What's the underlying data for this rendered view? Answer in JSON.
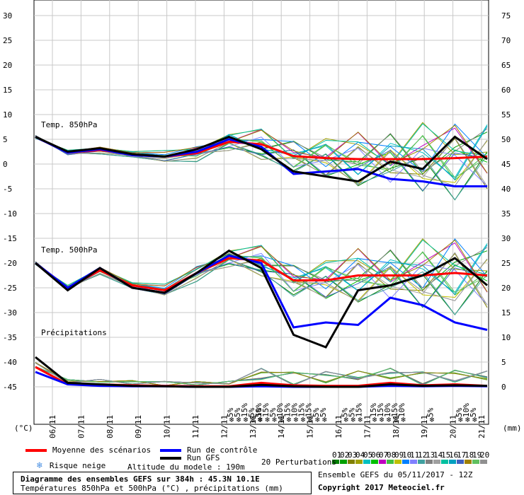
{
  "chart_data": {
    "type": "line",
    "title": "Diagramme des ensembles GEFS sur 384h : 45.3N 10.1E",
    "subtitle": "Températures 850hPa et 500hPa (°C) , précipitations (mm)",
    "left_axis": {
      "unit": "(°C)",
      "ticks": [
        30,
        25,
        20,
        15,
        10,
        5,
        0,
        -5,
        -10,
        -15,
        -20,
        -25,
        -30,
        -35,
        -40,
        -45
      ],
      "range": [
        -45,
        30
      ]
    },
    "right_axis": {
      "unit": "(mm)",
      "ticks": [
        75,
        70,
        65,
        60,
        55,
        50,
        45,
        40,
        35,
        30,
        25,
        20,
        15,
        10,
        5,
        0
      ]
    },
    "x_dates": [
      "06/11",
      "07/11",
      "08/11",
      "09/11",
      "10/11",
      "11/11",
      "12/11",
      "13/11",
      "14/11",
      "15/11",
      "16/11",
      "17/11",
      "18/11",
      "19/11",
      "20/11",
      "21/11"
    ],
    "panels": {
      "t850": "Temp. 850hPa",
      "t500": "Temp. 500hPa",
      "precip": "Précipitations"
    },
    "snow_risk": [
      {
        "date": "13/11",
        "pct": [
          "5%",
          "5%",
          "15%",
          "5%",
          "10%"
        ]
      },
      {
        "date": "14/11",
        "pct": [
          "5%",
          "15%",
          "5%",
          "10%"
        ]
      },
      {
        "date": "15/11",
        "pct": [
          "15%",
          "10%",
          "15%",
          "15%"
        ]
      },
      {
        "date": "16/11",
        "pct": [
          "5%",
          "5%"
        ]
      },
      {
        "date": "17/11",
        "pct": [
          "5%",
          "5%",
          "15%"
        ]
      },
      {
        "date": "18/11",
        "pct": [
          "15%",
          "15%",
          "10%",
          "15%"
        ]
      },
      {
        "date": "19/11",
        "pct": [
          "10%"
        ]
      },
      {
        "date": "20/11",
        "pct": [
          "5%"
        ]
      },
      {
        "date": "21/11",
        "pct": [
          "5%",
          "10%",
          "5%"
        ]
      }
    ],
    "series": [
      {
        "name": "Moyenne des scénarios",
        "color": "#ff0000",
        "t850": [
          5.5,
          2.3,
          2.8,
          2.0,
          1.5,
          2.2,
          4.5,
          4.0,
          1.6,
          1.2,
          1.0,
          1.0,
          1.0,
          1.2,
          1.5
        ],
        "t500": [
          -20,
          -25,
          -21.5,
          -24.5,
          -25.5,
          -22,
          -19,
          -19.5,
          -23.5,
          -23.5,
          -22.5,
          -22.5,
          -22.5,
          -22,
          -22.5
        ],
        "precip": [
          4,
          0.5,
          0.5,
          0.3,
          0.2,
          0.1,
          0.1,
          0.8,
          0.3,
          0.2,
          0.2,
          0.8,
          0.3,
          0.5,
          0.2
        ]
      },
      {
        "name": "Run de contrôle",
        "color": "#0000ff",
        "t850": [
          5.5,
          2.3,
          3.0,
          1.8,
          1.5,
          2.5,
          5.0,
          3.5,
          -2.0,
          -1.5,
          -1.0,
          -3.0,
          -3.5,
          -4.5,
          -4.5
        ],
        "t500": [
          -20,
          -25,
          -21,
          -25,
          -26,
          -22,
          -18.5,
          -20,
          -33,
          -32,
          -32.5,
          -27,
          -28.5,
          -32,
          -33.5
        ],
        "precip": [
          3,
          0.5,
          0.2,
          0.1,
          0.1,
          0,
          0,
          0.1,
          0,
          0,
          0,
          0.2,
          0.1,
          0.2,
          0.1
        ]
      },
      {
        "name": "Run GFS",
        "color": "#000000",
        "t850": [
          5.5,
          2.5,
          3.2,
          2.0,
          1.5,
          3.0,
          5.5,
          3.0,
          -1.5,
          -2.5,
          -3.5,
          0.5,
          -1.0,
          5.5,
          1.0
        ],
        "t500": [
          -20,
          -25.5,
          -21,
          -25,
          -26,
          -22,
          -17.5,
          -21,
          -34.5,
          -37,
          -25.5,
          -24.5,
          -22.5,
          -19,
          -24.5
        ],
        "precip": [
          6,
          0.8,
          0.5,
          0.2,
          0.1,
          0,
          0,
          0.4,
          0.1,
          0,
          0,
          0.5,
          0.2,
          0.3,
          0.2
        ]
      }
    ],
    "perturbations": {
      "label": "20 Perturbations",
      "ids": [
        "01",
        "02",
        "03",
        "04",
        "05",
        "06",
        "07",
        "08",
        "09",
        "10",
        "11",
        "12",
        "13",
        "14",
        "15",
        "16",
        "17",
        "18",
        "19",
        "20"
      ],
      "colors": [
        "#008000",
        "#00a000",
        "#808000",
        "#a0a000",
        "#00c0c0",
        "#00c000",
        "#c000c0",
        "#40c040",
        "#c0c000",
        "#0080ff",
        "#8080ff",
        "#40a0a0",
        "#808080",
        "#a0a0a0",
        "#00c0a0",
        "#00a0c0",
        "#4060c0",
        "#a08000",
        "#60c060",
        "#909090"
      ]
    },
    "legend": {
      "mean": "Moyenne des scénarios",
      "control": "Run de contrôle",
      "gfs": "Run GFS",
      "snow": "Risque neige",
      "altitude": "Altitude du modele : 190m"
    },
    "info": {
      "ensemble": "Ensemble GEFS du 05/11/2017 - 12Z",
      "copyright": "Copyright 2017 Meteociel.fr"
    }
  }
}
